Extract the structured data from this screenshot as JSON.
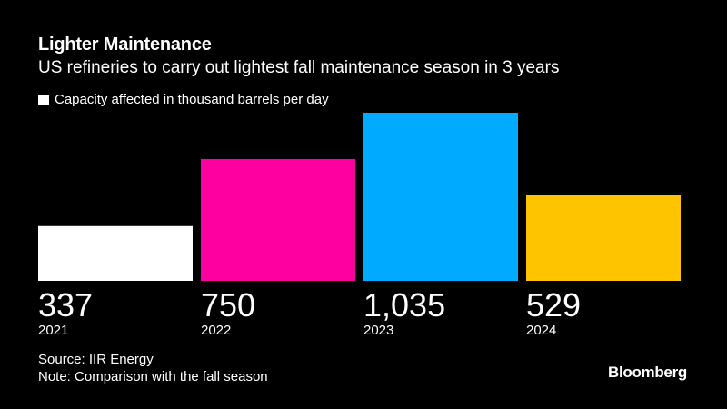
{
  "title": "Lighter Maintenance",
  "subtitle": "US refineries to carry out lightest fall maintenance season in 3 years",
  "legend": {
    "label": "Capacity affected in thousand barrels per day",
    "swatch_color": "#ffffff"
  },
  "footer": {
    "source": "Source: IIR Energy",
    "note": "Note: Comparison with the fall season",
    "brand": "Bloomberg"
  },
  "chart_data": {
    "type": "bar",
    "categories": [
      "2021",
      "2022",
      "2023",
      "2024"
    ],
    "values": [
      337,
      750,
      1035,
      529
    ],
    "value_labels": [
      "337",
      "750",
      "1,035",
      "529"
    ],
    "colors": [
      "#ffffff",
      "#ff00a0",
      "#00aaff",
      "#ffc400"
    ],
    "ylim": [
      0,
      1035
    ],
    "grid": false
  }
}
